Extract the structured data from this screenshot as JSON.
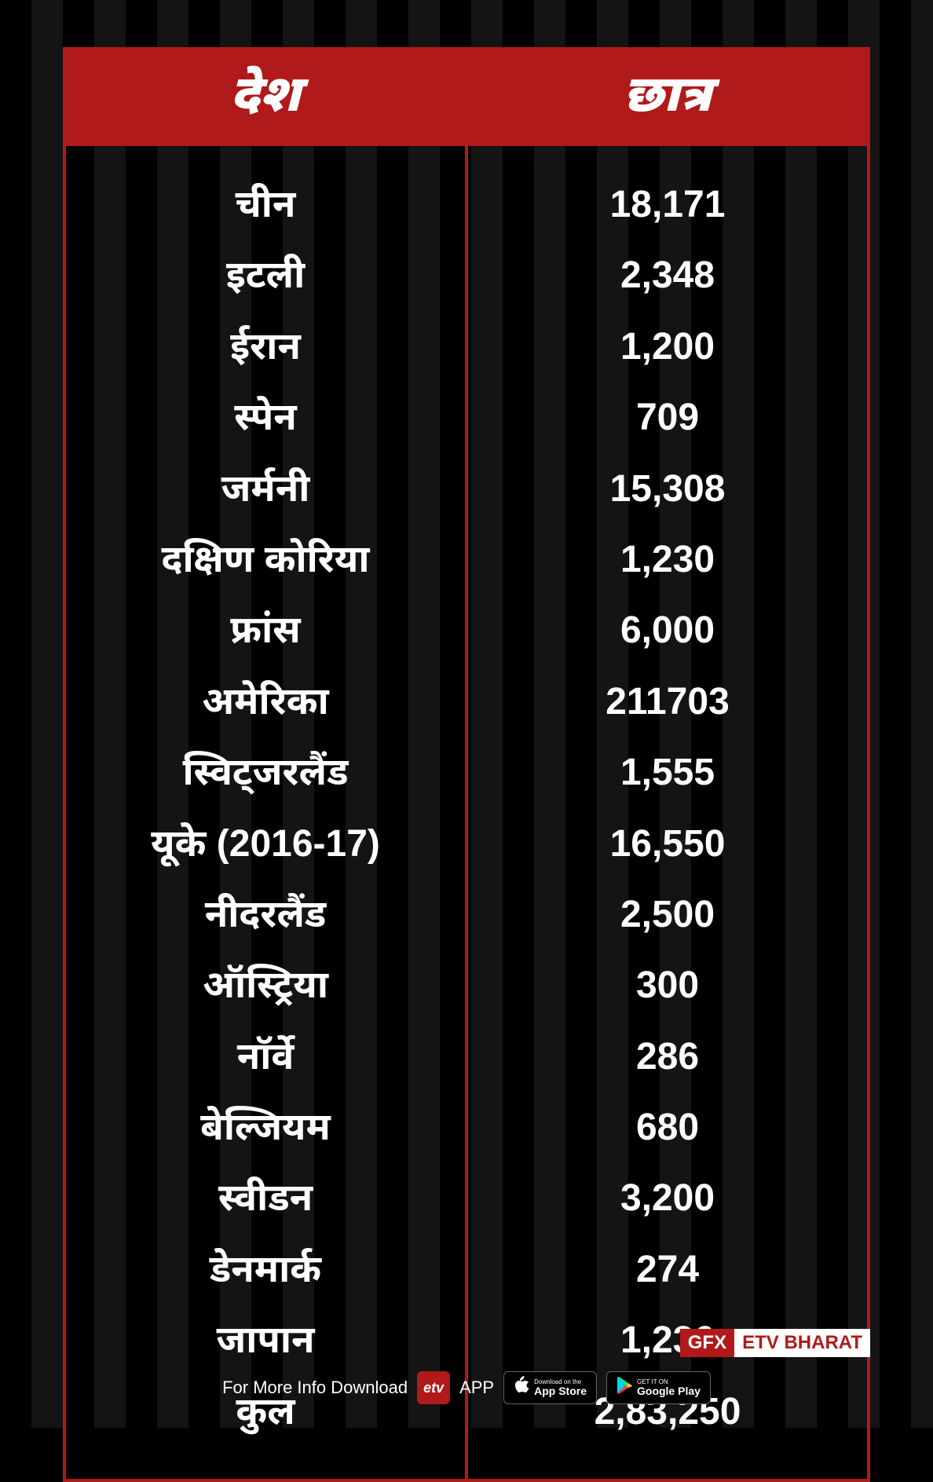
{
  "table": {
    "headers": {
      "country": "देश",
      "students": "छात्र"
    },
    "rows": [
      {
        "country": "चीन",
        "students": "18,171"
      },
      {
        "country": "इटली",
        "students": "2,348"
      },
      {
        "country": "ईरान",
        "students": "1,200"
      },
      {
        "country": "स्पेन",
        "students": "709"
      },
      {
        "country": "जर्मनी",
        "students": "15,308"
      },
      {
        "country": "दक्षिण कोरिया",
        "students": "1,230"
      },
      {
        "country": "फ्रांस",
        "students": "6,000"
      },
      {
        "country": "अमेरिका",
        "students": "211703"
      },
      {
        "country": "स्विट्जरलैंड",
        "students": "1,555"
      },
      {
        "country": "यूके (2016-17)",
        "students": "16,550"
      },
      {
        "country": "नीदरलैंड",
        "students": "2,500"
      },
      {
        "country": "ऑस्ट्रिया",
        "students": "300"
      },
      {
        "country": "नॉर्वे",
        "students": "286"
      },
      {
        "country": "बेल्जियम",
        "students": "680"
      },
      {
        "country": "स्वीडन",
        "students": "3,200"
      },
      {
        "country": "डेनमार्क",
        "students": "274"
      },
      {
        "country": "जापान",
        "students": "1,236"
      },
      {
        "country": "कुल",
        "students": "2,83,250"
      }
    ]
  },
  "footer": {
    "info_text": "For More Info Download",
    "app_label": "APP",
    "app_icon_text": "etv",
    "app_store": {
      "small": "Download on the",
      "large": "App Store"
    },
    "google_play": {
      "small": "GET IT ON",
      "large": "Google Play"
    }
  },
  "brand": {
    "gfx": "GFX",
    "name": "ETV BHARAT"
  },
  "styling": {
    "header_bg": "#b01a1a",
    "border_color": "#b01a1a",
    "text_color": "#ffffff",
    "bg_stripe_dark": "#000000",
    "bg_stripe_light": "#141414",
    "header_fontsize": 64,
    "body_fontsize": 48,
    "header_font_weight": 900,
    "body_font_weight": 700
  }
}
